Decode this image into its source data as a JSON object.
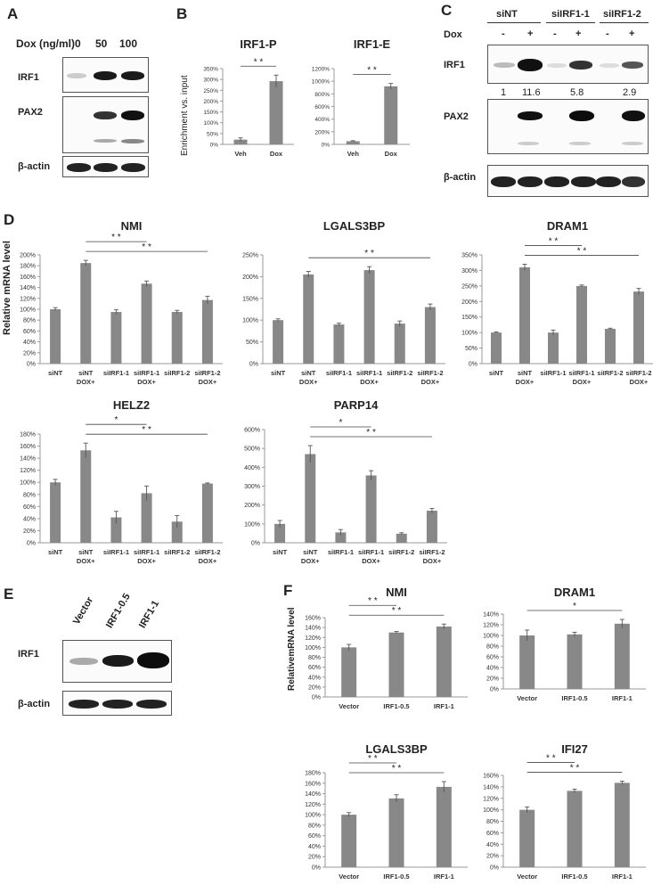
{
  "panel_letters": {
    "a": "A",
    "b": "B",
    "c": "C",
    "d": "D",
    "e": "E",
    "f": "F"
  },
  "panel_a": {
    "dose_label": "Dox (ng/ml)",
    "doses": [
      "0",
      "50",
      "100"
    ],
    "rows": [
      "IRF1",
      "PAX2",
      "β-actin"
    ]
  },
  "panel_c": {
    "groups": [
      "siNT",
      "siIRF1-1",
      "siIRF1-2"
    ],
    "dox_label": "Dox",
    "dox_signs": [
      "-",
      "+",
      "-",
      "+",
      "-",
      "+"
    ],
    "rows": [
      "IRF1",
      "PAX2",
      "β-actin"
    ],
    "quant": [
      "1",
      "11.6",
      "5.8",
      "2.9"
    ]
  },
  "panel_e": {
    "lanes": [
      "Vector",
      "IRF1-0.5",
      "IRF1-1"
    ],
    "rows": [
      "IRF1",
      "β-actin"
    ]
  },
  "ylabels": {
    "b": "Enrichment vs. input",
    "d": "Relative mRNA level",
    "f": "RelativemRNA level"
  },
  "chart_data": [
    {
      "id": "B1",
      "type": "bar",
      "title": "IRF1-P",
      "categories": [
        "Veh",
        "Dox"
      ],
      "values": [
        22,
        292
      ],
      "errors": [
        8,
        28
      ],
      "ylim": [
        0,
        350
      ],
      "yticks": [
        0,
        50,
        100,
        150,
        200,
        250,
        300,
        350
      ],
      "pct": true,
      "sig": [
        {
          "from": 0,
          "to": 1,
          "label": "* *"
        }
      ]
    },
    {
      "id": "B2",
      "type": "bar",
      "title": "IRF1-E",
      "categories": [
        "Veh",
        "Dox"
      ],
      "values": [
        50,
        920
      ],
      "errors": [
        8,
        45
      ],
      "ylim": [
        0,
        1200
      ],
      "yticks": [
        0,
        200,
        400,
        600,
        800,
        1000,
        1200
      ],
      "pct": true,
      "sig": [
        {
          "from": 0,
          "to": 1,
          "label": "* *"
        }
      ]
    },
    {
      "id": "D1",
      "type": "bar",
      "title": "NMI",
      "categories": [
        [
          "siNT"
        ],
        [
          "siNT",
          "DOX+"
        ],
        [
          "siIRF1-1"
        ],
        [
          "siIRF1-1",
          "DOX+"
        ],
        [
          "siIRF1-2"
        ],
        [
          "siIRF1-2",
          "DOX+"
        ]
      ],
      "values": [
        100,
        185,
        95,
        147,
        95,
        117
      ],
      "errors": [
        3,
        5,
        4,
        5,
        3,
        7
      ],
      "ylim": [
        0,
        200
      ],
      "yticks": [
        0,
        20,
        40,
        60,
        80,
        100,
        120,
        140,
        160,
        180,
        200
      ],
      "pct": true,
      "sig": [
        {
          "from": 1,
          "to": 3,
          "label": "* *"
        },
        {
          "from": 1,
          "to": 5,
          "label": "* *"
        }
      ]
    },
    {
      "id": "D2",
      "type": "bar",
      "title": "LGALS3BP",
      "categories": [
        [
          "siNT"
        ],
        [
          "siNT",
          "DOX+"
        ],
        [
          "siIRF1-1"
        ],
        [
          "siIRF1-1",
          "DOX+"
        ],
        [
          "siIRF1-2"
        ],
        [
          "siIRF1-2",
          "DOX+"
        ]
      ],
      "values": [
        100,
        205,
        90,
        215,
        92,
        130
      ],
      "errors": [
        3,
        7,
        3,
        8,
        6,
        7
      ],
      "ylim": [
        0,
        250
      ],
      "yticks": [
        0,
        50,
        100,
        150,
        200,
        250
      ],
      "pct": true,
      "sig": [
        {
          "from": 1,
          "to": 5,
          "label": "* *"
        }
      ]
    },
    {
      "id": "D3",
      "type": "bar",
      "title": "DRAM1",
      "categories": [
        [
          "siNT"
        ],
        [
          "siNT",
          "DOX+"
        ],
        [
          "siIRF1-1"
        ],
        [
          "siIRF1-1",
          "DOX+"
        ],
        [
          "siIRF1-2"
        ],
        [
          "siIRF1-2",
          "DOX+"
        ]
      ],
      "values": [
        100,
        310,
        100,
        250,
        112,
        232
      ],
      "errors": [
        2,
        10,
        8,
        3,
        2,
        10
      ],
      "ylim": [
        0,
        350
      ],
      "yticks": [
        0,
        50,
        100,
        150,
        200,
        250,
        300,
        350
      ],
      "pct": true,
      "sig": [
        {
          "from": 1,
          "to": 3,
          "label": "* *"
        },
        {
          "from": 1,
          "to": 5,
          "label": "* *"
        }
      ]
    },
    {
      "id": "D4",
      "type": "bar",
      "title": "HELZ2",
      "categories": [
        [
          "siNT"
        ],
        [
          "siNT",
          "DOX+"
        ],
        [
          "siIRF1-1"
        ],
        [
          "siIRF1-1",
          "DOX+"
        ],
        [
          "siIRF1-2"
        ],
        [
          "siIRF1-2",
          "DOX+"
        ]
      ],
      "values": [
        100,
        153,
        42,
        82,
        35,
        98
      ],
      "errors": [
        5,
        12,
        10,
        12,
        10,
        1
      ],
      "ylim": [
        0,
        180
      ],
      "yticks": [
        0,
        20,
        40,
        60,
        80,
        100,
        120,
        140,
        160,
        180
      ],
      "pct": true,
      "sig": [
        {
          "from": 1,
          "to": 3,
          "label": "*"
        },
        {
          "from": 1,
          "to": 5,
          "label": "* *"
        }
      ]
    },
    {
      "id": "D5",
      "type": "bar",
      "title": "PARP14",
      "categories": [
        [
          "siNT"
        ],
        [
          "siNT",
          "DOX+"
        ],
        [
          "siIRF1-1"
        ],
        [
          "siIRF1-1",
          "DOX+"
        ],
        [
          "siIRF1-2"
        ],
        [
          "siIRF1-2",
          "DOX+"
        ]
      ],
      "values": [
        100,
        470,
        55,
        357,
        48,
        170
      ],
      "errors": [
        18,
        45,
        15,
        25,
        5,
        12
      ],
      "ylim": [
        0,
        600
      ],
      "yticks": [
        0,
        100,
        200,
        300,
        400,
        500,
        600
      ],
      "pct": true,
      "sig": [
        {
          "from": 1,
          "to": 3,
          "label": "*"
        },
        {
          "from": 1,
          "to": 5,
          "label": "* *"
        }
      ]
    },
    {
      "id": "F1",
      "type": "bar",
      "title": "NMI",
      "categories": [
        [
          "Vector"
        ],
        [
          "IRF1-0.5"
        ],
        [
          "IRF1-1"
        ]
      ],
      "values": [
        100,
        130,
        142
      ],
      "errors": [
        6,
        2,
        5
      ],
      "ylim": [
        0,
        160
      ],
      "yticks": [
        0,
        20,
        40,
        60,
        80,
        100,
        120,
        140,
        160
      ],
      "pct": true,
      "sig": [
        {
          "from": 0,
          "to": 1,
          "label": "* *"
        },
        {
          "from": 0,
          "to": 2,
          "label": "* *"
        }
      ]
    },
    {
      "id": "F2",
      "type": "bar",
      "title": "DRAM1",
      "categories": [
        [
          "Vector"
        ],
        [
          "IRF1-0.5"
        ],
        [
          "IRF1-1"
        ]
      ],
      "values": [
        100,
        102,
        122
      ],
      "errors": [
        10,
        4,
        8
      ],
      "ylim": [
        0,
        140
      ],
      "yticks": [
        0,
        20,
        40,
        60,
        80,
        100,
        120,
        140
      ],
      "pct": true,
      "sig": [
        {
          "from": 0,
          "to": 2,
          "label": "*"
        }
      ]
    },
    {
      "id": "F3",
      "type": "bar",
      "title": "LGALS3BP",
      "categories": [
        [
          "Vector"
        ],
        [
          "IRF1-0.5"
        ],
        [
          "IRF1-1"
        ]
      ],
      "values": [
        100,
        131,
        153
      ],
      "errors": [
        4,
        7,
        10
      ],
      "ylim": [
        0,
        180
      ],
      "yticks": [
        0,
        20,
        40,
        60,
        80,
        100,
        120,
        140,
        160,
        180
      ],
      "pct": true,
      "sig": [
        {
          "from": 0,
          "to": 1,
          "label": "* *"
        },
        {
          "from": 0,
          "to": 2,
          "label": "* *"
        }
      ]
    },
    {
      "id": "F4",
      "type": "bar",
      "title": "IFI27",
      "categories": [
        [
          "Vector"
        ],
        [
          "IRF1-0.5"
        ],
        [
          "IRF1-1"
        ]
      ],
      "values": [
        100,
        133,
        147
      ],
      "errors": [
        5,
        3,
        3
      ],
      "ylim": [
        0,
        160
      ],
      "yticks": [
        0,
        20,
        40,
        60,
        80,
        100,
        120,
        140,
        160
      ],
      "pct": true,
      "sig": [
        {
          "from": 0,
          "to": 1,
          "label": "* *"
        },
        {
          "from": 0,
          "to": 2,
          "label": "* *"
        }
      ]
    }
  ]
}
